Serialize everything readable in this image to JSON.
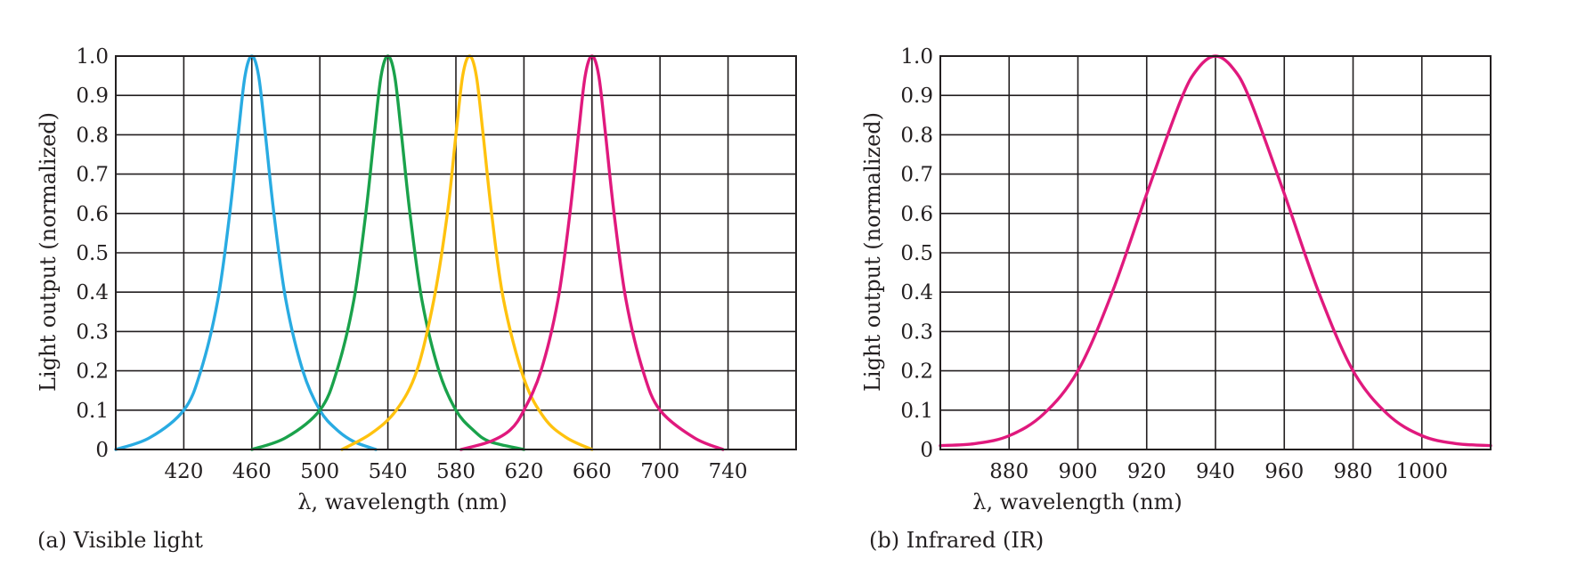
{
  "chart_data": [
    {
      "type": "line",
      "caption": "(a) Visible light",
      "xlabel": "λ, wavelength (nm)",
      "ylabel": "Light output (normalized)",
      "xlim": [
        380,
        780
      ],
      "ylim": [
        0,
        1.0
      ],
      "x_ticks": [
        420,
        460,
        500,
        540,
        580,
        620,
        660,
        700,
        740
      ],
      "y_ticks": [
        {
          "value": 0,
          "label": "0"
        },
        {
          "value": 0.1,
          "label": "0.1"
        },
        {
          "value": 0.2,
          "label": "0.2"
        },
        {
          "value": 0.3,
          "label": "0.3"
        },
        {
          "value": 0.4,
          "label": "0.4"
        },
        {
          "value": 0.5,
          "label": "0.5"
        },
        {
          "value": 0.6,
          "label": "0.6"
        },
        {
          "value": 0.7,
          "label": "0.7"
        },
        {
          "value": 0.8,
          "label": "0.8"
        },
        {
          "value": 0.9,
          "label": "0.9"
        },
        {
          "value": 1.0,
          "label": "1.0"
        }
      ],
      "grid": true,
      "series": [
        {
          "color": "#29abe2",
          "x": [
            380,
            400,
            420,
            430,
            440,
            447,
            452,
            456,
            460,
            464,
            468,
            473,
            480,
            490,
            500,
            510,
            520,
            533
          ],
          "y": [
            0,
            0.03,
            0.1,
            0.2,
            0.38,
            0.6,
            0.8,
            0.95,
            1.0,
            0.95,
            0.8,
            0.6,
            0.38,
            0.2,
            0.1,
            0.05,
            0.02,
            0
          ]
        },
        {
          "color": "#1aa24b",
          "x": [
            460,
            480,
            500,
            510,
            520,
            527,
            532,
            536,
            540,
            544,
            548,
            553,
            560,
            570,
            580,
            590,
            600,
            620
          ],
          "y": [
            0,
            0.03,
            0.1,
            0.2,
            0.38,
            0.6,
            0.8,
            0.95,
            1.0,
            0.95,
            0.8,
            0.6,
            0.38,
            0.2,
            0.1,
            0.05,
            0.02,
            0
          ]
        },
        {
          "color": "#ffc20e",
          "x": [
            513,
            530,
            545,
            557,
            567,
            575,
            580,
            584,
            588,
            592,
            596,
            601,
            608,
            620,
            632,
            645,
            660
          ],
          "y": [
            0,
            0.04,
            0.1,
            0.2,
            0.38,
            0.6,
            0.8,
            0.95,
            1.0,
            0.95,
            0.8,
            0.6,
            0.38,
            0.18,
            0.08,
            0.03,
            0
          ]
        },
        {
          "color": "#e0197d",
          "x": [
            583,
            600,
            612,
            620,
            630,
            640,
            647,
            652,
            656,
            660,
            664,
            668,
            673,
            680,
            690,
            700,
            720,
            737
          ],
          "y": [
            0,
            0.02,
            0.05,
            0.1,
            0.2,
            0.38,
            0.6,
            0.8,
            0.95,
            1.0,
            0.95,
            0.8,
            0.6,
            0.38,
            0.2,
            0.1,
            0.03,
            0
          ]
        }
      ]
    },
    {
      "type": "line",
      "caption": "(b) Infrared (IR)",
      "xlabel": "λ, wavelength (nm)",
      "ylabel": "Light output (normalized)",
      "xlim": [
        860,
        1020
      ],
      "ylim": [
        0,
        1.0
      ],
      "x_ticks": [
        880,
        900,
        920,
        940,
        960,
        980,
        1000
      ],
      "y_ticks": [
        {
          "value": 0,
          "label": "0"
        },
        {
          "value": 0.1,
          "label": "0.1"
        },
        {
          "value": 0.2,
          "label": "0.2"
        },
        {
          "value": 0.3,
          "label": "0.3"
        },
        {
          "value": 0.4,
          "label": "0.4"
        },
        {
          "value": 0.5,
          "label": "0.5"
        },
        {
          "value": 0.6,
          "label": "0.6"
        },
        {
          "value": 0.7,
          "label": "0.7"
        },
        {
          "value": 0.8,
          "label": "0.8"
        },
        {
          "value": 0.9,
          "label": "0.9"
        },
        {
          "value": 1.0,
          "label": "1.0"
        }
      ],
      "grid": true,
      "series": [
        {
          "color": "#e0197d",
          "x": [
            860,
            870,
            880,
            890,
            900,
            910,
            920,
            930,
            935,
            940,
            945,
            950,
            960,
            970,
            980,
            990,
            1000,
            1010,
            1020
          ],
          "y": [
            0.01,
            0.015,
            0.035,
            0.09,
            0.2,
            0.4,
            0.65,
            0.89,
            0.97,
            1.0,
            0.97,
            0.89,
            0.65,
            0.4,
            0.2,
            0.09,
            0.035,
            0.015,
            0.01
          ]
        }
      ]
    }
  ]
}
